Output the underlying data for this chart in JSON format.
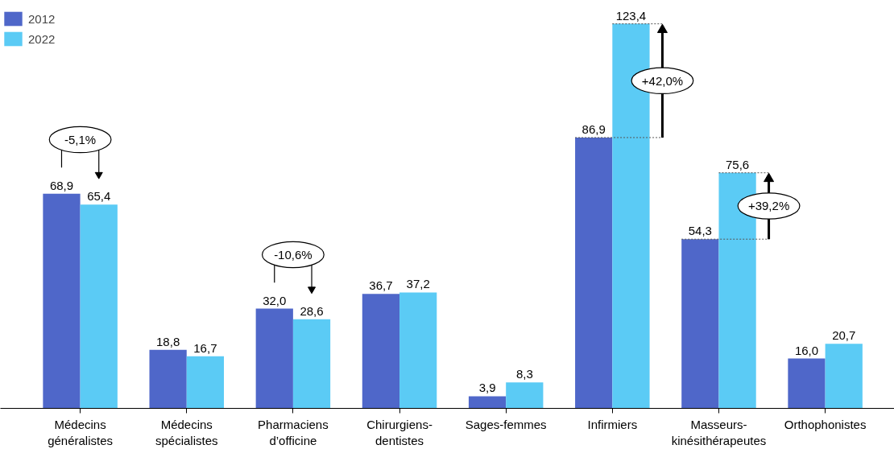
{
  "chart_data": {
    "type": "bar",
    "categories": [
      "Médecins généralistes",
      "Médecins spécialistes",
      "Pharmaciens d’officine",
      "Chirurgiens-dentistes",
      "Sages-femmes",
      "Infirmiers",
      "Masseurs-kinésithérapeutes",
      "Orthophonistes"
    ],
    "series": [
      {
        "name": "2012",
        "color": "#4f67c9",
        "values": [
          68.9,
          18.8,
          32.0,
          36.7,
          3.9,
          86.9,
          54.3,
          16.0
        ],
        "value_labels": [
          "68,9",
          "18,8",
          "32,0",
          "36,7",
          "3,9",
          "86,9",
          "54,3",
          "16,0"
        ]
      },
      {
        "name": "2022",
        "color": "#5bcbf5",
        "values": [
          65.4,
          16.7,
          28.6,
          37.2,
          8.3,
          123.4,
          75.6,
          20.7
        ],
        "value_labels": [
          "65,4",
          "16,7",
          "28,6",
          "37,2",
          "8,3",
          "123,4",
          "75,6",
          "20,7"
        ]
      }
    ],
    "annotations": [
      "-5,1%",
      "-10,6%",
      "+42,0%",
      "+39,2%"
    ],
    "legend": "top left",
    "grid": false
  }
}
